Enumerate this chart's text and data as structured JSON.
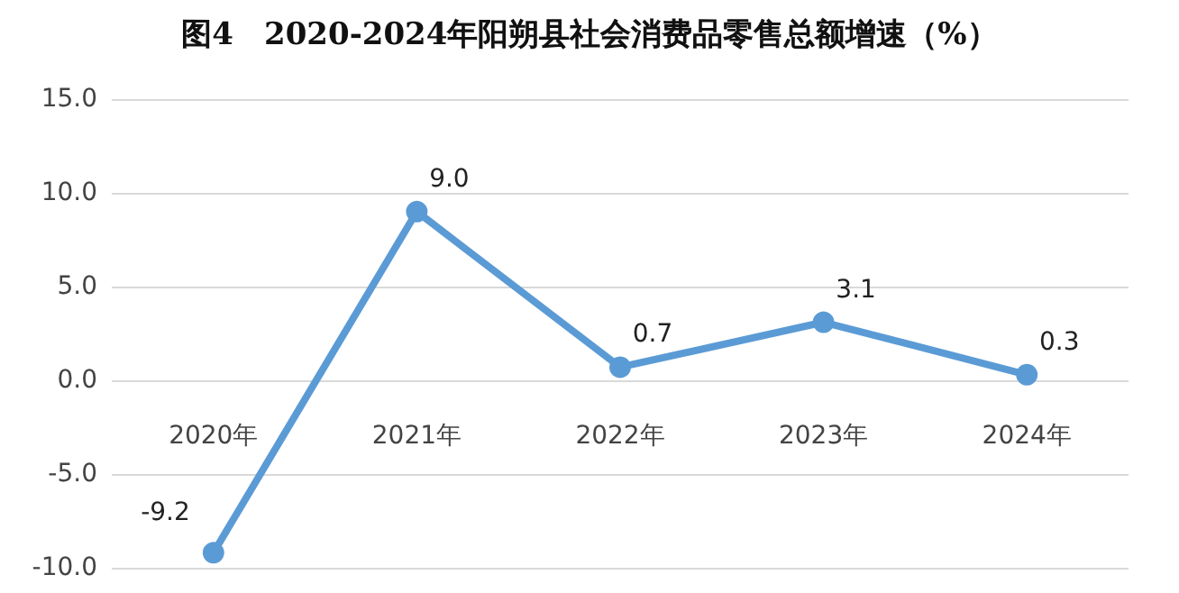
{
  "chart_data": {
    "type": "line",
    "title": "图4　2020-2024年阳朔县社会消费品零售总额增速（%）",
    "categories": [
      "2020年",
      "2021年",
      "2022年",
      "2023年",
      "2024年"
    ],
    "series": [
      {
        "color": "#5b9bd5",
        "values": [
          -9.2,
          9.0,
          0.7,
          3.1,
          0.3
        ]
      }
    ],
    "ylim": [
      -10,
      15
    ],
    "yticks": [
      {
        "value": -10,
        "label": "-10.0"
      },
      {
        "value": -5,
        "label": "-5.0"
      },
      {
        "value": 0,
        "label": "0.0"
      },
      {
        "value": 5,
        "label": "5.0"
      },
      {
        "value": 10,
        "label": "10.0"
      },
      {
        "value": 15,
        "label": "15.0"
      }
    ],
    "value_labels": [
      "-9.2",
      "9.0",
      "0.7",
      "3.1",
      "0.3"
    ],
    "grid": "y",
    "marker": "circle",
    "line_style": "solid"
  }
}
